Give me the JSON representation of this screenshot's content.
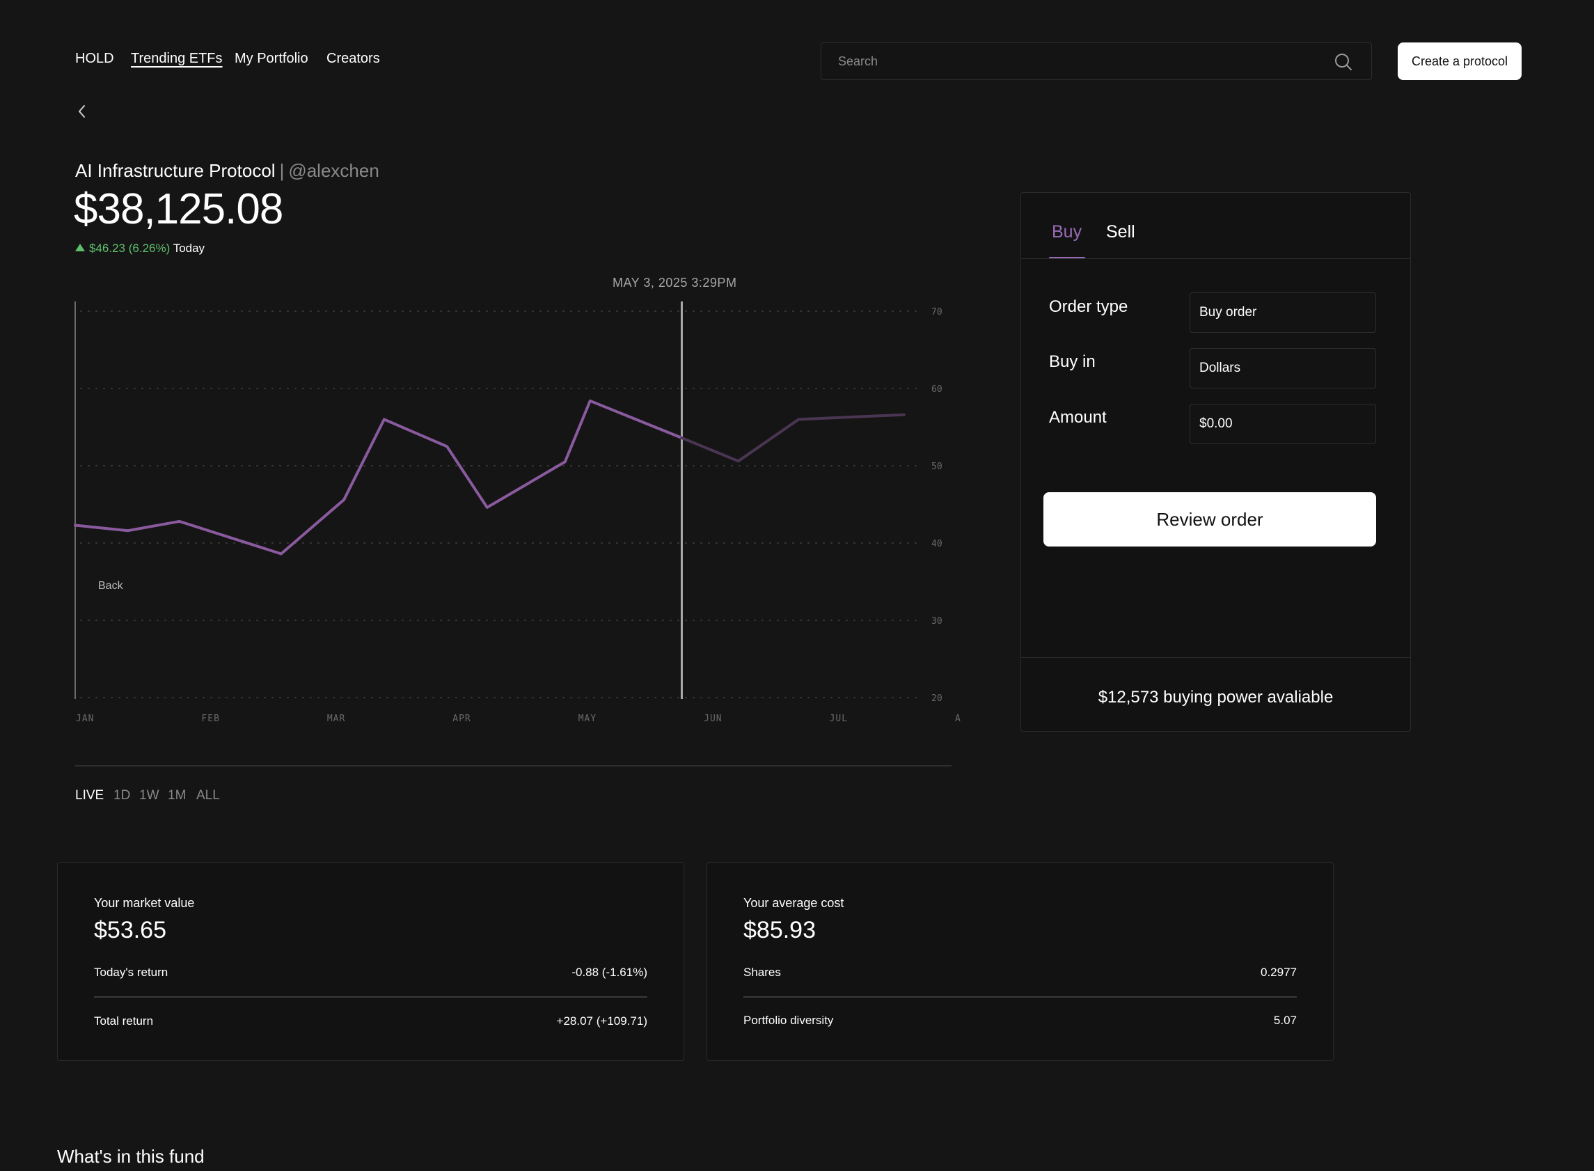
{
  "nav": {
    "items": [
      {
        "label": "HOLD"
      },
      {
        "label": "Trending ETFs"
      },
      {
        "label": "My Portfolio"
      },
      {
        "label": "Creators"
      }
    ],
    "active": "Trending ETFs"
  },
  "search": {
    "placeholder": "Search"
  },
  "create_button": "Create a protocol",
  "header": {
    "name": "AI Infrastructure Protocol",
    "separator": "|",
    "handle": "@alexchen",
    "price": "$38,125.08",
    "change_amount": "$46.23",
    "change_percent": "(6.26%)",
    "change_period": "Today"
  },
  "chart": {
    "timestamp": "MAY 3, 2025 3:29PM",
    "overlay_label": "Back",
    "ranges": [
      {
        "label": "LIVE"
      },
      {
        "label": "1D"
      },
      {
        "label": "1W"
      },
      {
        "label": "1M"
      },
      {
        "label": "ALL"
      }
    ],
    "active_range": "LIVE",
    "line_color": "#8a5a9e",
    "faded_line_color": "#4a3552"
  },
  "chart_data": {
    "type": "line",
    "x_ticks": [
      "JAN",
      "FEB",
      "MAR",
      "APR",
      "MAY",
      "JUN",
      "JUL",
      "AUG"
    ],
    "y_ticks": [
      70,
      60,
      50,
      40,
      30,
      20
    ],
    "ylim": [
      20,
      70
    ],
    "xlim": [
      0,
      7
    ],
    "grid": true,
    "cursor_x": 4.83,
    "series": [
      {
        "values": [
          {
            "x": 0.0,
            "y": 42.3
          },
          {
            "x": 0.42,
            "y": 41.6
          },
          {
            "x": 0.83,
            "y": 42.8
          },
          {
            "x": 1.64,
            "y": 38.6
          },
          {
            "x": 2.14,
            "y": 45.6
          },
          {
            "x": 2.46,
            "y": 56.0
          },
          {
            "x": 2.96,
            "y": 52.5
          },
          {
            "x": 3.28,
            "y": 44.6
          },
          {
            "x": 3.9,
            "y": 50.5
          },
          {
            "x": 4.1,
            "y": 58.4
          },
          {
            "x": 4.83,
            "y": 53.6
          }
        ]
      },
      {
        "values": [
          {
            "x": 4.83,
            "y": 53.6
          },
          {
            "x": 5.28,
            "y": 50.6
          },
          {
            "x": 5.76,
            "y": 56.0
          },
          {
            "x": 6.6,
            "y": 56.6
          }
        ]
      }
    ]
  },
  "trade_panel": {
    "tabs": [
      {
        "label": "Buy"
      },
      {
        "label": "Sell"
      }
    ],
    "active_tab": "Buy",
    "fields": [
      {
        "label": "Order type",
        "value": "Buy order"
      },
      {
        "label": "Buy in",
        "value": "Dollars"
      },
      {
        "label": "Amount",
        "value": "$0.00"
      }
    ],
    "review_button": "Review order",
    "buying_power": "$12,573 buying power avaliable"
  },
  "stats": {
    "market_value": {
      "label": "Your market value",
      "value": "$53.65",
      "rows": [
        {
          "label": "Today's return",
          "value": "-0.88 (-1.61%)"
        },
        {
          "label": "Total return",
          "value": "+28.07 (+109.71)"
        }
      ]
    },
    "average_cost": {
      "label": "Your average cost",
      "value": "$85.93",
      "rows": [
        {
          "label": "Shares",
          "value": "0.2977"
        },
        {
          "label": "Portfolio diversity",
          "value": "5.07"
        }
      ]
    }
  },
  "fund_section_title": "What's in this fund",
  "colors": {
    "background": "#151515",
    "accent_purple": "#9b6bb8",
    "positive_green": "#5fbf6b"
  }
}
